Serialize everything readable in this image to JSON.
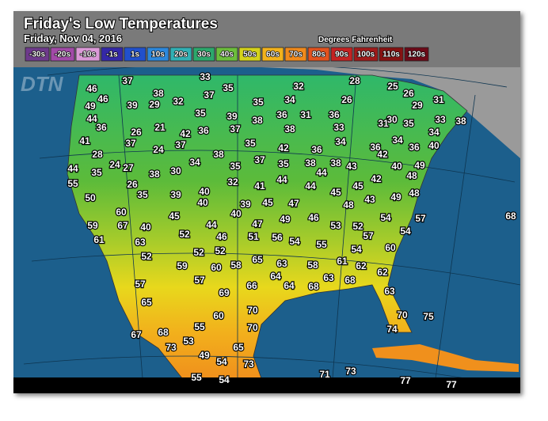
{
  "header": {
    "title": "Friday's Low Temperatures",
    "subtitle": "Friday, Nov 04, 2016",
    "units": "Degrees Fahrenheit",
    "logo": "DTN"
  },
  "legend": {
    "labels": [
      "-30s",
      "-20s",
      "-10s",
      "-1s",
      "1s",
      "10s",
      "20s",
      "30s",
      "40s",
      "50s",
      "60s",
      "70s",
      "80s",
      "90s",
      "100s",
      "110s",
      "120s"
    ],
    "colors": [
      "#6e3a8c",
      "#a24aa8",
      "#dc9ad8",
      "#3428a8",
      "#2150cc",
      "#2d88dc",
      "#31b0b4",
      "#2ca86c",
      "#6cbe3c",
      "#d4d21c",
      "#f2b21c",
      "#f08a1c",
      "#e2521e",
      "#c42222",
      "#a01a1a",
      "#861212",
      "#6c0a18"
    ]
  },
  "temperatures": [
    46,
    37,
    33,
    32,
    28,
    25,
    46,
    26,
    38,
    32,
    37,
    35,
    35,
    34,
    26,
    31,
    49,
    39,
    29,
    29,
    44,
    35,
    39,
    38,
    36,
    31,
    36,
    30,
    35,
    33,
    38,
    31,
    36,
    21,
    26,
    42,
    36,
    37,
    38,
    33,
    34,
    41,
    37,
    37,
    35,
    34,
    34,
    40,
    28,
    24,
    38,
    42,
    36,
    36,
    42,
    36,
    44,
    24,
    27,
    34,
    35,
    37,
    35,
    38,
    38,
    43,
    40,
    49,
    35,
    38,
    30,
    44,
    48,
    55,
    26,
    32,
    41,
    44,
    44,
    45,
    42,
    50,
    35,
    39,
    40,
    45,
    43,
    49,
    48,
    40,
    39,
    45,
    47,
    48,
    60,
    40,
    47,
    49,
    46,
    54,
    57,
    45,
    59,
    67,
    40,
    44,
    53,
    52,
    61,
    63,
    52,
    46,
    51,
    56,
    54,
    55,
    57,
    54,
    60,
    52,
    52,
    52,
    54,
    65,
    63,
    58,
    61,
    62,
    59,
    60,
    58,
    64,
    63,
    68,
    62,
    57,
    57,
    66,
    64,
    68,
    63,
    65,
    69,
    70,
    70,
    75,
    60,
    55,
    70,
    74,
    67,
    68,
    53,
    73,
    65,
    49,
    54,
    73,
    71,
    73,
    77,
    77,
    55,
    54,
    68
  ]
}
